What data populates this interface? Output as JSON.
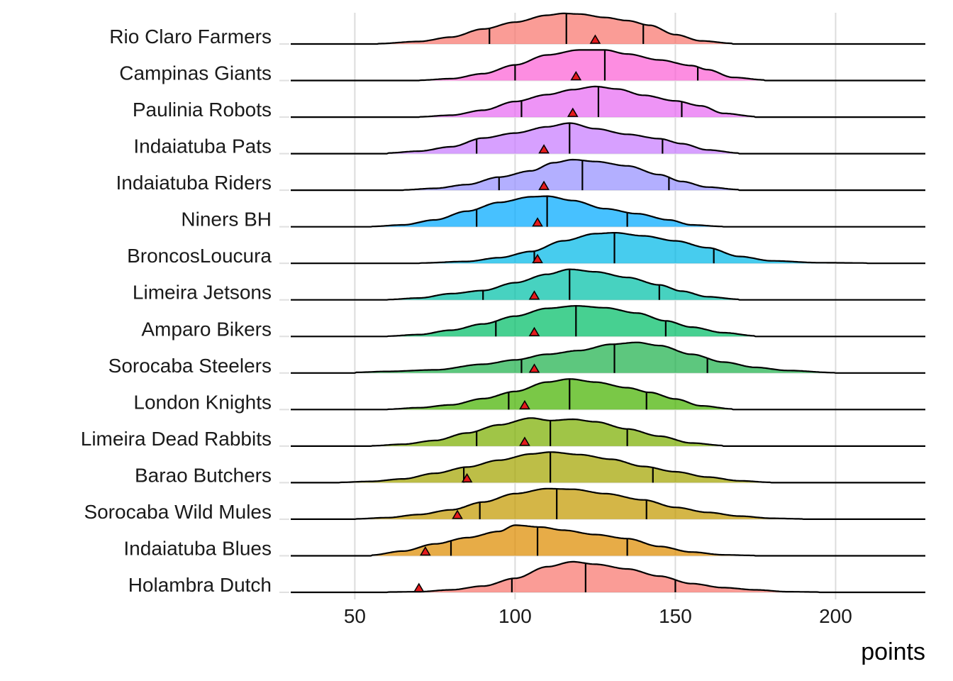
{
  "chart_data": {
    "type": "ridgeline",
    "xlabel": "points",
    "xlim": [
      30,
      228
    ],
    "xticks": [
      50,
      100,
      150,
      200
    ],
    "grid": true,
    "legend": "none",
    "marker_color": "#e41a1c",
    "series": [
      {
        "name": "Rio Claro Farmers",
        "color": "#f8766d",
        "q25": 92,
        "median": 116,
        "q75": 140,
        "mean": 125,
        "density": [
          [
            57,
            0.01
          ],
          [
            70,
            0.08
          ],
          [
            80,
            0.22
          ],
          [
            90,
            0.48
          ],
          [
            100,
            0.7
          ],
          [
            110,
            0.92
          ],
          [
            115,
            0.98
          ],
          [
            120,
            0.96
          ],
          [
            128,
            0.85
          ],
          [
            135,
            0.75
          ],
          [
            142,
            0.6
          ],
          [
            150,
            0.3
          ],
          [
            158,
            0.1
          ],
          [
            168,
            0.02
          ]
        ]
      },
      {
        "name": "Campinas Giants",
        "color": "#fc61d5",
        "q25": 100,
        "median": 128,
        "q75": 157,
        "mean": 119,
        "density": [
          [
            70,
            0.01
          ],
          [
            80,
            0.06
          ],
          [
            90,
            0.22
          ],
          [
            100,
            0.5
          ],
          [
            110,
            0.82
          ],
          [
            120,
            0.98
          ],
          [
            128,
            0.98
          ],
          [
            135,
            0.85
          ],
          [
            145,
            0.66
          ],
          [
            155,
            0.48
          ],
          [
            160,
            0.35
          ],
          [
            168,
            0.1
          ],
          [
            178,
            0.02
          ]
        ]
      },
      {
        "name": "Paulinia Robots",
        "color": "#e76bf3",
        "q25": 102,
        "median": 126,
        "q75": 152,
        "mean": 118,
        "density": [
          [
            70,
            0.01
          ],
          [
            80,
            0.06
          ],
          [
            90,
            0.22
          ],
          [
            100,
            0.5
          ],
          [
            110,
            0.72
          ],
          [
            118,
            0.88
          ],
          [
            125,
            0.98
          ],
          [
            132,
            0.9
          ],
          [
            140,
            0.7
          ],
          [
            150,
            0.52
          ],
          [
            158,
            0.36
          ],
          [
            165,
            0.12
          ],
          [
            175,
            0.02
          ]
        ]
      },
      {
        "name": "Indaiatuba Pats",
        "color": "#c77cff",
        "q25": 88,
        "median": 117,
        "q75": 146,
        "mean": 109,
        "density": [
          [
            60,
            0.02
          ],
          [
            70,
            0.08
          ],
          [
            80,
            0.22
          ],
          [
            90,
            0.5
          ],
          [
            100,
            0.66
          ],
          [
            110,
            0.86
          ],
          [
            117,
            0.98
          ],
          [
            125,
            0.8
          ],
          [
            135,
            0.62
          ],
          [
            145,
            0.48
          ],
          [
            152,
            0.32
          ],
          [
            160,
            0.12
          ],
          [
            170,
            0.02
          ]
        ]
      },
      {
        "name": "Indaiatuba Riders",
        "color": "#9590ff",
        "q25": 95,
        "median": 121,
        "q75": 148,
        "mean": 109,
        "density": [
          [
            65,
            0.01
          ],
          [
            75,
            0.06
          ],
          [
            85,
            0.18
          ],
          [
            95,
            0.42
          ],
          [
            105,
            0.62
          ],
          [
            112,
            0.88
          ],
          [
            118,
            0.98
          ],
          [
            125,
            0.92
          ],
          [
            135,
            0.78
          ],
          [
            145,
            0.5
          ],
          [
            152,
            0.28
          ],
          [
            160,
            0.1
          ],
          [
            170,
            0.02
          ]
        ]
      },
      {
        "name": "Niners BH",
        "color": "#00a9ff",
        "q25": 88,
        "median": 110,
        "q75": 135,
        "mean": 107,
        "density": [
          [
            55,
            0.01
          ],
          [
            65,
            0.06
          ],
          [
            75,
            0.22
          ],
          [
            85,
            0.5
          ],
          [
            95,
            0.78
          ],
          [
            105,
            0.96
          ],
          [
            110,
            0.98
          ],
          [
            118,
            0.84
          ],
          [
            128,
            0.58
          ],
          [
            138,
            0.42
          ],
          [
            148,
            0.22
          ],
          [
            155,
            0.06
          ],
          [
            165,
            0.01
          ]
        ]
      },
      {
        "name": "BroncosLoucura",
        "color": "#00b8e7",
        "q25": 106,
        "median": 131,
        "q75": 162,
        "mean": 107,
        "density": [
          [
            70,
            0.01
          ],
          [
            85,
            0.06
          ],
          [
            95,
            0.18
          ],
          [
            105,
            0.38
          ],
          [
            115,
            0.72
          ],
          [
            125,
            0.95
          ],
          [
            131,
            0.98
          ],
          [
            140,
            0.88
          ],
          [
            150,
            0.72
          ],
          [
            160,
            0.5
          ],
          [
            170,
            0.22
          ],
          [
            180,
            0.08
          ],
          [
            195,
            0.02
          ],
          [
            210,
            0.01
          ]
        ]
      },
      {
        "name": "Limeira Jetsons",
        "color": "#00c1a8",
        "q25": 90,
        "median": 117,
        "q75": 145,
        "mean": 106,
        "density": [
          [
            60,
            0.01
          ],
          [
            70,
            0.06
          ],
          [
            80,
            0.2
          ],
          [
            90,
            0.3
          ],
          [
            100,
            0.55
          ],
          [
            110,
            0.82
          ],
          [
            117,
            0.98
          ],
          [
            125,
            0.9
          ],
          [
            135,
            0.72
          ],
          [
            145,
            0.48
          ],
          [
            152,
            0.28
          ],
          [
            160,
            0.1
          ],
          [
            170,
            0.02
          ]
        ]
      },
      {
        "name": "Amparo Bikers",
        "color": "#00be67",
        "q25": 94,
        "median": 119,
        "q75": 147,
        "mean": 106,
        "density": [
          [
            60,
            0.01
          ],
          [
            70,
            0.06
          ],
          [
            80,
            0.2
          ],
          [
            90,
            0.4
          ],
          [
            100,
            0.65
          ],
          [
            110,
            0.9
          ],
          [
            119,
            0.98
          ],
          [
            128,
            0.92
          ],
          [
            138,
            0.75
          ],
          [
            147,
            0.5
          ],
          [
            155,
            0.3
          ],
          [
            165,
            0.12
          ],
          [
            175,
            0.02
          ]
        ]
      },
      {
        "name": "Sorocaba Steelers",
        "color": "#1fb24c",
        "q25": 102,
        "median": 131,
        "q75": 160,
        "mean": 106,
        "density": [
          [
            50,
            0.02
          ],
          [
            60,
            0.05
          ],
          [
            75,
            0.1
          ],
          [
            90,
            0.28
          ],
          [
            100,
            0.42
          ],
          [
            110,
            0.6
          ],
          [
            120,
            0.72
          ],
          [
            130,
            0.92
          ],
          [
            138,
            0.98
          ],
          [
            145,
            0.88
          ],
          [
            155,
            0.6
          ],
          [
            165,
            0.35
          ],
          [
            175,
            0.18
          ],
          [
            185,
            0.08
          ],
          [
            200,
            0.01
          ]
        ]
      },
      {
        "name": "London Knights",
        "color": "#46b300",
        "q25": 98,
        "median": 117,
        "q75": 141,
        "mean": 103,
        "density": [
          [
            60,
            0.01
          ],
          [
            70,
            0.06
          ],
          [
            80,
            0.15
          ],
          [
            90,
            0.35
          ],
          [
            100,
            0.58
          ],
          [
            110,
            0.88
          ],
          [
            117,
            0.98
          ],
          [
            125,
            0.88
          ],
          [
            135,
            0.7
          ],
          [
            142,
            0.55
          ],
          [
            150,
            0.34
          ],
          [
            158,
            0.12
          ],
          [
            168,
            0.02
          ]
        ]
      },
      {
        "name": "Limeira Dead Rabbits",
        "color": "#7cae00",
        "q25": 88,
        "median": 111,
        "q75": 135,
        "mean": 103,
        "density": [
          [
            55,
            0.01
          ],
          [
            65,
            0.06
          ],
          [
            75,
            0.18
          ],
          [
            85,
            0.42
          ],
          [
            95,
            0.68
          ],
          [
            105,
            0.9
          ],
          [
            111,
            0.82
          ],
          [
            118,
            0.86
          ],
          [
            125,
            0.78
          ],
          [
            135,
            0.55
          ],
          [
            145,
            0.32
          ],
          [
            155,
            0.1
          ],
          [
            165,
            0.02
          ]
        ]
      },
      {
        "name": "Barao Butchers",
        "color": "#a3a500",
        "q25": 84,
        "median": 111,
        "q75": 143,
        "mean": 85,
        "density": [
          [
            45,
            0.01
          ],
          [
            55,
            0.04
          ],
          [
            65,
            0.12
          ],
          [
            75,
            0.3
          ],
          [
            85,
            0.5
          ],
          [
            95,
            0.72
          ],
          [
            105,
            0.92
          ],
          [
            111,
            0.98
          ],
          [
            120,
            0.9
          ],
          [
            130,
            0.75
          ],
          [
            140,
            0.52
          ],
          [
            150,
            0.35
          ],
          [
            160,
            0.18
          ],
          [
            170,
            0.06
          ],
          [
            180,
            0.01
          ]
        ]
      },
      {
        "name": "Sorocaba Wild Mules",
        "color": "#c49a00",
        "q25": 89,
        "median": 113,
        "q75": 141,
        "mean": 82,
        "density": [
          [
            50,
            0.01
          ],
          [
            60,
            0.05
          ],
          [
            70,
            0.15
          ],
          [
            80,
            0.3
          ],
          [
            90,
            0.55
          ],
          [
            100,
            0.82
          ],
          [
            110,
            0.98
          ],
          [
            118,
            0.96
          ],
          [
            128,
            0.82
          ],
          [
            140,
            0.62
          ],
          [
            150,
            0.38
          ],
          [
            160,
            0.22
          ],
          [
            170,
            0.1
          ],
          [
            180,
            0.03
          ],
          [
            190,
            0.01
          ]
        ]
      },
      {
        "name": "Indaiatuba Blues",
        "color": "#de8c00",
        "q25": 80,
        "median": 107,
        "q75": 135,
        "mean": 72,
        "density": [
          [
            55,
            0.02
          ],
          [
            65,
            0.15
          ],
          [
            75,
            0.38
          ],
          [
            85,
            0.58
          ],
          [
            95,
            0.78
          ],
          [
            100,
            0.98
          ],
          [
            108,
            0.92
          ],
          [
            115,
            0.82
          ],
          [
            125,
            0.68
          ],
          [
            135,
            0.55
          ],
          [
            145,
            0.3
          ],
          [
            155,
            0.12
          ],
          [
            165,
            0.03
          ],
          [
            175,
            0.01
          ]
        ]
      },
      {
        "name": "Holambra Dutch",
        "color": "#f8766d",
        "q25": 99,
        "median": 122,
        "q75": 150,
        "mean": 70,
        "density": [
          [
            60,
            0.01
          ],
          [
            70,
            0.02
          ],
          [
            80,
            0.08
          ],
          [
            90,
            0.2
          ],
          [
            100,
            0.45
          ],
          [
            110,
            0.82
          ],
          [
            118,
            0.98
          ],
          [
            125,
            0.9
          ],
          [
            135,
            0.75
          ],
          [
            145,
            0.52
          ],
          [
            155,
            0.28
          ],
          [
            165,
            0.15
          ],
          [
            175,
            0.08
          ],
          [
            185,
            0.02
          ],
          [
            195,
            0.01
          ]
        ]
      }
    ]
  }
}
